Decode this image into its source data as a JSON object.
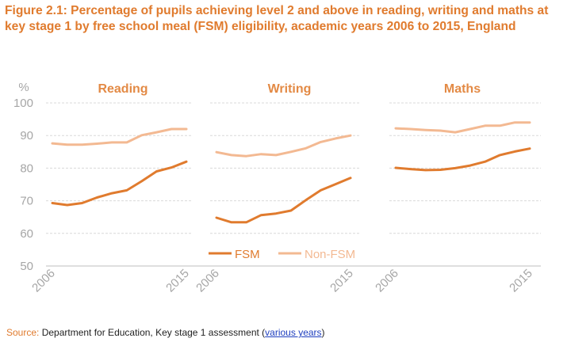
{
  "title": "Figure 2.1: Percentage of pupils achieving level 2 and above in reading, writing and maths at key stage 1 by free school meal (FSM) eligibility, academic years 2006 to 2015, England",
  "source": {
    "label": "Source:",
    "text": " Department for Education, Key stage 1 assessment (",
    "link": "various years",
    "close": ")"
  },
  "colors": {
    "fsm": "#e07b2e",
    "non_fsm": "#f3b992",
    "axis": "#bfbfbf",
    "grid": "#d9d9d9",
    "title": "#e07b2e"
  },
  "chart_data": {
    "type": "line",
    "ylabel": "%",
    "ylim": [
      50,
      100
    ],
    "yticks": [
      50,
      60,
      70,
      80,
      90,
      100
    ],
    "grid": true,
    "legend_position": "bottom-center",
    "x": [
      2006,
      2007,
      2008,
      2009,
      2010,
      2011,
      2012,
      2013,
      2014,
      2015
    ],
    "x_tick_labels": [
      "2006",
      "2015"
    ],
    "legend": [
      "FSM",
      "Non-FSM"
    ],
    "panels": [
      {
        "title": "Reading",
        "series": [
          {
            "name": "FSM",
            "values": [
              69.3,
              68.7,
              69.3,
              71.0,
              72.3,
              73.2,
              76.0,
              79.0,
              80.2,
              82.0
            ]
          },
          {
            "name": "Non-FSM",
            "values": [
              87.6,
              87.2,
              87.2,
              87.5,
              87.9,
              87.9,
              90.1,
              91.0,
              92.0,
              92.0
            ]
          }
        ]
      },
      {
        "title": "Writing",
        "series": [
          {
            "name": "FSM",
            "values": [
              64.8,
              63.4,
              63.4,
              65.6,
              66.1,
              67.0,
              70.2,
              73.2,
              75.1,
              77.0
            ]
          },
          {
            "name": "Non-FSM",
            "values": [
              84.9,
              84.0,
              83.7,
              84.3,
              84.0,
              85.0,
              86.1,
              88.0,
              89.1,
              90.0
            ]
          }
        ]
      },
      {
        "title": "Maths",
        "series": [
          {
            "name": "FSM",
            "values": [
              80.1,
              79.7,
              79.4,
              79.5,
              80.0,
              80.8,
              82.0,
              84.0,
              85.1,
              86.0
            ]
          },
          {
            "name": "Non-FSM",
            "values": [
              92.2,
              92.0,
              91.7,
              91.5,
              91.0,
              92.0,
              93.0,
              93.0,
              94.0,
              94.0
            ]
          }
        ]
      }
    ]
  }
}
